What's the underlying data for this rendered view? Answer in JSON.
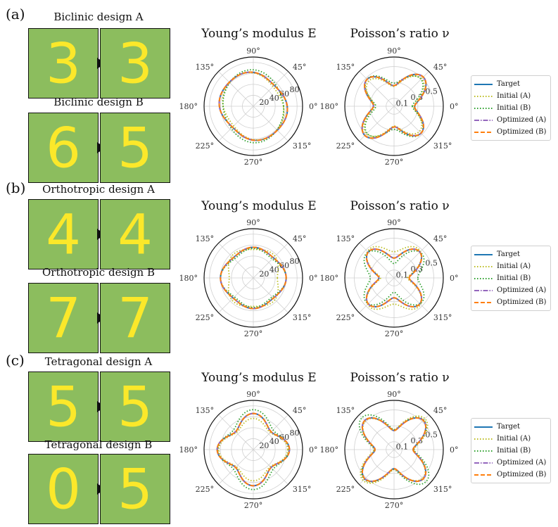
{
  "colors": {
    "tile_bg": "#8cbd5e",
    "digit": "#fbe82a",
    "target": "#1f77b4",
    "initA": "#bcbd22",
    "initB": "#2ca02c",
    "optA": "#9467bd",
    "optB": "#ff7f0e"
  },
  "legend": {
    "items": [
      {
        "label": "Target",
        "style": "solid",
        "color": "#1f77b4"
      },
      {
        "label": "Initial (A)",
        "style": "dotted",
        "color": "#bcbd22"
      },
      {
        "label": "Initial (B)",
        "style": "dotted",
        "color": "#2ca02c"
      },
      {
        "label": "Optimized (A)",
        "style": "dashdot",
        "color": "#9467bd"
      },
      {
        "label": "Optimized (B)",
        "style": "dashed",
        "color": "#ff7f0e"
      }
    ]
  },
  "polar_axis": {
    "angle_labels": [
      "0°",
      "45°",
      "90°",
      "135°",
      "180°",
      "225°",
      "270°",
      "315°"
    ],
    "E_radial_ticks": [
      "20",
      "40",
      "60",
      "80"
    ],
    "nu_radial_ticks": [
      "0.1",
      "0.3",
      "0.5"
    ]
  },
  "panels": [
    {
      "label": "(a)",
      "design_a_title": "Biclinic design A",
      "design_b_title": "Biclinic design B",
      "digits": {
        "a_initial": "3",
        "a_optimized": "3",
        "b_initial": "6",
        "b_optimized": "5"
      },
      "E_title": "Young’s modulus E",
      "nu_title": "Poisson’s ratio ν",
      "chart_data": [
        {
          "type": "polar-line",
          "title": "Young’s modulus E",
          "radial_ticks": [
            20,
            40,
            60,
            80
          ],
          "rmax": 90,
          "series": [
            {
              "name": "Target",
              "r0": 60,
              "a2": 4,
              "p2": 135,
              "a4": 2,
              "p4": 0
            },
            {
              "name": "Initial (A)",
              "r0": 57,
              "a2": 6,
              "p2": 120,
              "a4": 1,
              "p4": 0
            },
            {
              "name": "Initial (B)",
              "r0": 60,
              "a2": 6,
              "p2": 100,
              "a4": 1,
              "p4": 0
            },
            {
              "name": "Optimized (A)",
              "r0": 60,
              "a2": 4,
              "p2": 135,
              "a4": 2,
              "p4": 0
            },
            {
              "name": "Optimized (B)",
              "r0": 60,
              "a2": 4,
              "p2": 135,
              "a4": 2,
              "p4": 0
            }
          ]
        },
        {
          "type": "polar-line",
          "title": "Poisson’s ratio ν",
          "radial_ticks": [
            0.1,
            0.3,
            0.5
          ],
          "rmax": 0.62,
          "series": [
            {
              "name": "Target",
              "r0": 0.38,
              "a2": 0.02,
              "p2": 45,
              "a4": 0.12,
              "p4": 45
            },
            {
              "name": "Initial (A)",
              "r0": 0.36,
              "a2": 0.02,
              "p2": 45,
              "a4": 0.11,
              "p4": 45
            },
            {
              "name": "Initial (B)",
              "r0": 0.37,
              "a2": 0.03,
              "p2": 90,
              "a4": 0.11,
              "p4": 45
            },
            {
              "name": "Optimized (A)",
              "r0": 0.38,
              "a2": 0.02,
              "p2": 45,
              "a4": 0.12,
              "p4": 45
            },
            {
              "name": "Optimized (B)",
              "r0": 0.38,
              "a2": 0.02,
              "p2": 45,
              "a4": 0.12,
              "p4": 45
            }
          ]
        }
      ]
    },
    {
      "label": "(b)",
      "design_a_title": "Orthotropic design A",
      "design_b_title": "Orthotropic design B",
      "digits": {
        "a_initial": "4",
        "a_optimized": "4",
        "b_initial": "7",
        "b_optimized": "7"
      },
      "E_title": "Young’s modulus E",
      "nu_title": "Poisson’s ratio ν",
      "chart_data": [
        {
          "type": "polar-line",
          "title": "Young’s modulus E",
          "radial_ticks": [
            20,
            40,
            60,
            80
          ],
          "rmax": 90,
          "series": [
            {
              "name": "Target",
              "r0": 55,
              "a2": 2,
              "p2": 0,
              "a4": 3,
              "p4": 0
            },
            {
              "name": "Initial (A)",
              "r0": 52,
              "a2": 4,
              "p2": 90,
              "a4": 4,
              "p4": 45
            },
            {
              "name": "Initial (B)",
              "r0": 53,
              "a2": 3,
              "p2": 0,
              "a4": 4,
              "p4": 0
            },
            {
              "name": "Optimized (A)",
              "r0": 55,
              "a2": 2,
              "p2": 0,
              "a4": 3,
              "p4": 0
            },
            {
              "name": "Optimized (B)",
              "r0": 55,
              "a2": 2,
              "p2": 0,
              "a4": 3,
              "p4": 0
            }
          ]
        },
        {
          "type": "polar-line",
          "title": "Poisson’s ratio ν",
          "radial_ticks": [
            0.1,
            0.3,
            0.5
          ],
          "rmax": 0.62,
          "series": [
            {
              "name": "Target",
              "r0": 0.34,
              "a2": 0.03,
              "p2": 90,
              "a4": 0.12,
              "p4": 45
            },
            {
              "name": "Initial (A)",
              "r0": 0.36,
              "a2": 0.08,
              "p2": 90,
              "a4": 0.11,
              "p4": 45
            },
            {
              "name": "Initial (B)",
              "r0": 0.35,
              "a2": 0.06,
              "p2": 0,
              "a4": 0.11,
              "p4": 45
            },
            {
              "name": "Optimized (A)",
              "r0": 0.34,
              "a2": 0.03,
              "p2": 90,
              "a4": 0.12,
              "p4": 45
            },
            {
              "name": "Optimized (B)",
              "r0": 0.34,
              "a2": 0.03,
              "p2": 90,
              "a4": 0.12,
              "p4": 45
            }
          ]
        }
      ]
    },
    {
      "label": "(c)",
      "design_a_title": "Tetragonal design A",
      "design_b_title": "Tetragonal design B",
      "digits": {
        "a_initial": "5",
        "a_optimized": "5",
        "b_initial": "0",
        "b_optimized": "5"
      },
      "E_title": "Young’s modulus E",
      "nu_title": "Poisson’s ratio ν",
      "chart_data": [
        {
          "type": "polar-line",
          "title": "Young’s modulus E",
          "radial_ticks": [
            20,
            40,
            60,
            80
          ],
          "rmax": 90,
          "series": [
            {
              "name": "Target",
              "r0": 56,
              "a2": 0,
              "p2": 0,
              "a4": 10,
              "p4": 0
            },
            {
              "name": "Initial (A)",
              "r0": 52,
              "a2": 3,
              "p2": 0,
              "a4": 8,
              "p4": 0
            },
            {
              "name": "Initial (B)",
              "r0": 60,
              "a2": 4,
              "p2": 90,
              "a4": 9,
              "p4": 0
            },
            {
              "name": "Optimized (A)",
              "r0": 56,
              "a2": 0,
              "p2": 0,
              "a4": 10,
              "p4": 0
            },
            {
              "name": "Optimized (B)",
              "r0": 56,
              "a2": 0,
              "p2": 0,
              "a4": 10,
              "p4": 0
            }
          ]
        },
        {
          "type": "polar-line",
          "title": "Poisson’s ratio ν",
          "radial_ticks": [
            0.1,
            0.3,
            0.5
          ],
          "rmax": 0.62,
          "series": [
            {
              "name": "Target",
              "r0": 0.38,
              "a2": 0,
              "p2": 0,
              "a4": 0.14,
              "p4": 45
            },
            {
              "name": "Initial (A)",
              "r0": 0.39,
              "a2": 0.02,
              "p2": 45,
              "a4": 0.14,
              "p4": 45
            },
            {
              "name": "Initial (B)",
              "r0": 0.4,
              "a2": 0.02,
              "p2": 135,
              "a4": 0.15,
              "p4": 45
            },
            {
              "name": "Optimized (A)",
              "r0": 0.38,
              "a2": 0,
              "p2": 0,
              "a4": 0.14,
              "p4": 45
            },
            {
              "name": "Optimized (B)",
              "r0": 0.38,
              "a2": 0,
              "p2": 0,
              "a4": 0.14,
              "p4": 45
            }
          ]
        }
      ]
    }
  ]
}
